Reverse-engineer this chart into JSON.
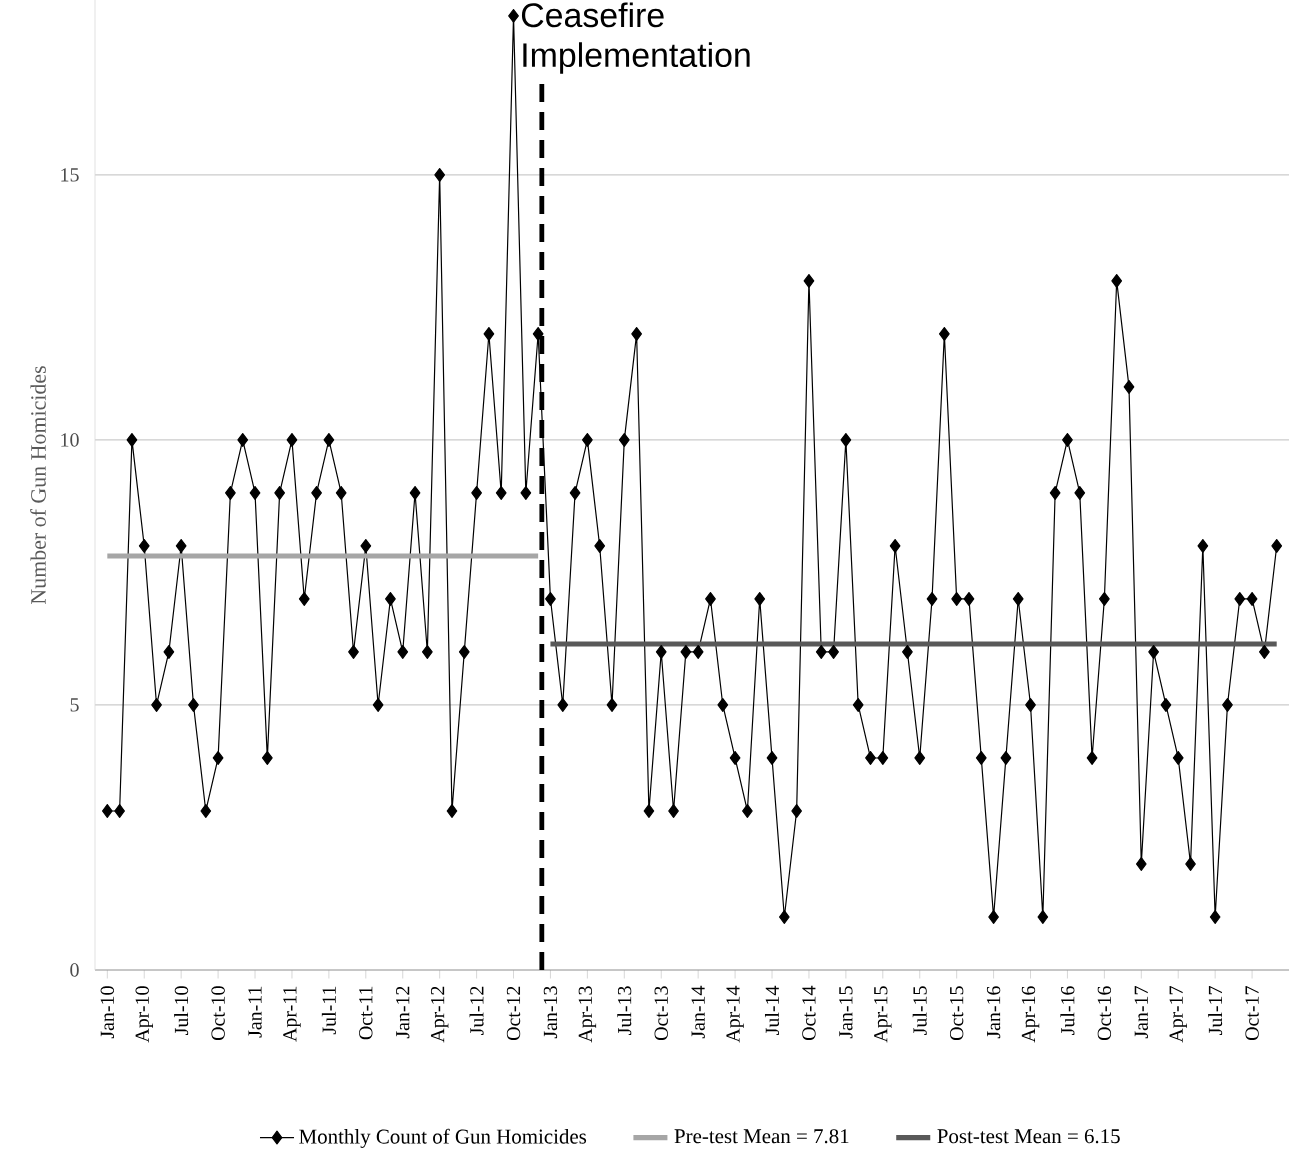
{
  "chart_data": {
    "type": "line",
    "ylabel": "Number of Gun Homicides",
    "x": [
      "2010-01",
      "2010-02",
      "2010-03",
      "2010-04",
      "2010-05",
      "2010-06",
      "2010-07",
      "2010-08",
      "2010-09",
      "2010-10",
      "2010-11",
      "2010-12",
      "2011-01",
      "2011-02",
      "2011-03",
      "2011-04",
      "2011-05",
      "2011-06",
      "2011-07",
      "2011-08",
      "2011-09",
      "2011-10",
      "2011-11",
      "2011-12",
      "2012-01",
      "2012-02",
      "2012-03",
      "2012-04",
      "2012-05",
      "2012-06",
      "2012-07",
      "2012-08",
      "2012-09",
      "2012-10",
      "2012-11",
      "2012-12",
      "2013-01",
      "2013-02",
      "2013-03",
      "2013-04",
      "2013-05",
      "2013-06",
      "2013-07",
      "2013-08",
      "2013-09",
      "2013-10",
      "2013-11",
      "2013-12",
      "2014-01",
      "2014-02",
      "2014-03",
      "2014-04",
      "2014-05",
      "2014-06",
      "2014-07",
      "2014-08",
      "2014-09",
      "2014-10",
      "2014-11",
      "2014-12",
      "2015-01",
      "2015-02",
      "2015-03",
      "2015-04",
      "2015-05",
      "2015-06",
      "2015-07",
      "2015-08",
      "2015-09",
      "2015-10",
      "2015-11",
      "2015-12",
      "2016-01",
      "2016-02",
      "2016-03",
      "2016-04",
      "2016-05",
      "2016-06",
      "2016-07",
      "2016-08",
      "2016-09",
      "2016-10",
      "2016-11",
      "2016-12",
      "2017-01",
      "2017-02",
      "2017-03",
      "2017-04",
      "2017-05",
      "2017-06",
      "2017-07",
      "2017-08",
      "2017-09",
      "2017-10",
      "2017-11",
      "2017-12"
    ],
    "series": [
      {
        "name": "Monthly Count of Gun Homicides",
        "color": "#000000",
        "values": [
          3,
          3,
          10,
          8,
          5,
          6,
          8,
          5,
          3,
          4,
          9,
          10,
          9,
          4,
          9,
          10,
          7,
          9,
          10,
          9,
          6,
          8,
          5,
          7,
          6,
          9,
          6,
          15,
          3,
          6,
          9,
          12,
          9,
          18,
          9,
          12,
          7,
          5,
          9,
          10,
          8,
          5,
          10,
          12,
          3,
          6,
          3,
          6,
          6,
          7,
          5,
          4,
          3,
          7,
          4,
          1,
          3,
          13,
          6,
          6,
          10,
          5,
          4,
          4,
          8,
          6,
          4,
          7,
          12,
          7,
          7,
          4,
          1,
          4,
          7,
          5,
          1,
          9,
          10,
          9,
          4,
          7,
          13,
          11,
          2,
          6,
          5,
          4,
          2,
          8,
          1,
          5,
          7,
          7,
          6,
          8
        ]
      },
      {
        "name": "Pre-test Mean = 7.81",
        "color": "#a6a6a6",
        "type": "line",
        "marker": "none",
        "x": [
          "2010-01",
          "2012-12"
        ],
        "values": [
          7.81,
          7.81
        ]
      },
      {
        "name": "Post-test Mean = 6.15",
        "color": "#595959",
        "type": "line",
        "marker": "none",
        "x": [
          "2013-01",
          "2017-12"
        ],
        "values": [
          6.15,
          6.15
        ]
      }
    ],
    "xlim": [
      "2009-12",
      "2018-01"
    ],
    "xticks": [
      {
        "value": "2010-01",
        "label": "Jan-10"
      },
      {
        "value": "2010-04",
        "label": "Apr-10"
      },
      {
        "value": "2010-07",
        "label": "Jul-10"
      },
      {
        "value": "2010-10",
        "label": "Oct-10"
      },
      {
        "value": "2011-01",
        "label": "Jan-11"
      },
      {
        "value": "2011-04",
        "label": "Apr-11"
      },
      {
        "value": "2011-07",
        "label": "Jul-11"
      },
      {
        "value": "2011-10",
        "label": "Oct-11"
      },
      {
        "value": "2012-01",
        "label": "Jan-12"
      },
      {
        "value": "2012-04",
        "label": "Apr-12"
      },
      {
        "value": "2012-07",
        "label": "Jul-12"
      },
      {
        "value": "2012-10",
        "label": "Oct-12"
      },
      {
        "value": "2013-01",
        "label": "Jan-13"
      },
      {
        "value": "2013-04",
        "label": "Apr-13"
      },
      {
        "value": "2013-07",
        "label": "Jul-13"
      },
      {
        "value": "2013-10",
        "label": "Oct-13"
      },
      {
        "value": "2014-01",
        "label": "Jan-14"
      },
      {
        "value": "2014-04",
        "label": "Apr-14"
      },
      {
        "value": "2014-07",
        "label": "Jul-14"
      },
      {
        "value": "2014-10",
        "label": "Oct-14"
      },
      {
        "value": "2015-01",
        "label": "Jan-15"
      },
      {
        "value": "2015-04",
        "label": "Apr-15"
      },
      {
        "value": "2015-07",
        "label": "Jul-15"
      },
      {
        "value": "2015-10",
        "label": "Oct-15"
      },
      {
        "value": "2016-01",
        "label": "Jan-16"
      },
      {
        "value": "2016-04",
        "label": "Apr-16"
      },
      {
        "value": "2016-07",
        "label": "Jul-16"
      },
      {
        "value": "2016-10",
        "label": "Oct-16"
      },
      {
        "value": "2017-01",
        "label": "Jan-17"
      },
      {
        "value": "2017-04",
        "label": "Apr-17"
      },
      {
        "value": "2017-07",
        "label": "Jul-17"
      },
      {
        "value": "2017-10",
        "label": "Oct-17"
      }
    ],
    "ylim": [
      0,
      18.3
    ],
    "yticks": [
      0,
      5,
      10,
      15
    ],
    "ref_lines": [
      {
        "axis": "x",
        "value": "2012-12-10",
        "label": "Ceasefire Implementation",
        "color": "#000000",
        "line_style": "dashed"
      }
    ],
    "grid": "y",
    "legend": "bottom",
    "marker": "diamond",
    "line_style": "solid"
  }
}
